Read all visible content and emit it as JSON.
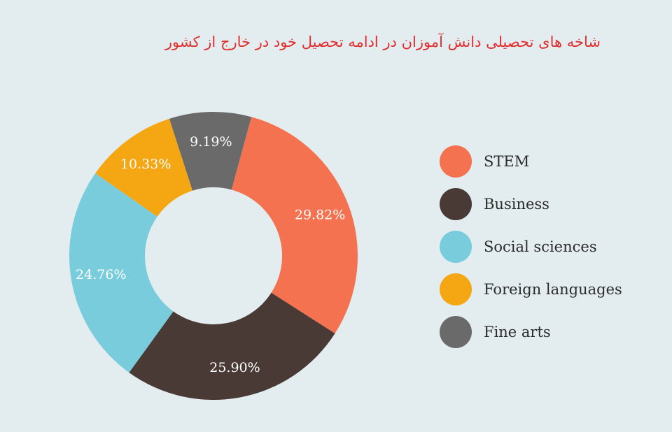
{
  "chart_data": {
    "type": "pie",
    "variant": "donut",
    "title": "شاخه های تحصیلی دانش آموزان در ادامه تحصیل خود در خارج از کشور",
    "categories": [
      "STEM",
      "Business",
      "Social sciences",
      "Foreign languages",
      "Fine arts"
    ],
    "values": [
      29.82,
      25.9,
      24.76,
      10.33,
      9.19
    ],
    "value_labels": [
      "29.82%",
      "25.90%",
      "24.76%",
      "10.33%",
      "9.19%"
    ],
    "colors": [
      "#f4724f",
      "#4a3a36",
      "#78ccdb",
      "#f4a712",
      "#6a6a6a"
    ],
    "legend_position": "right"
  }
}
